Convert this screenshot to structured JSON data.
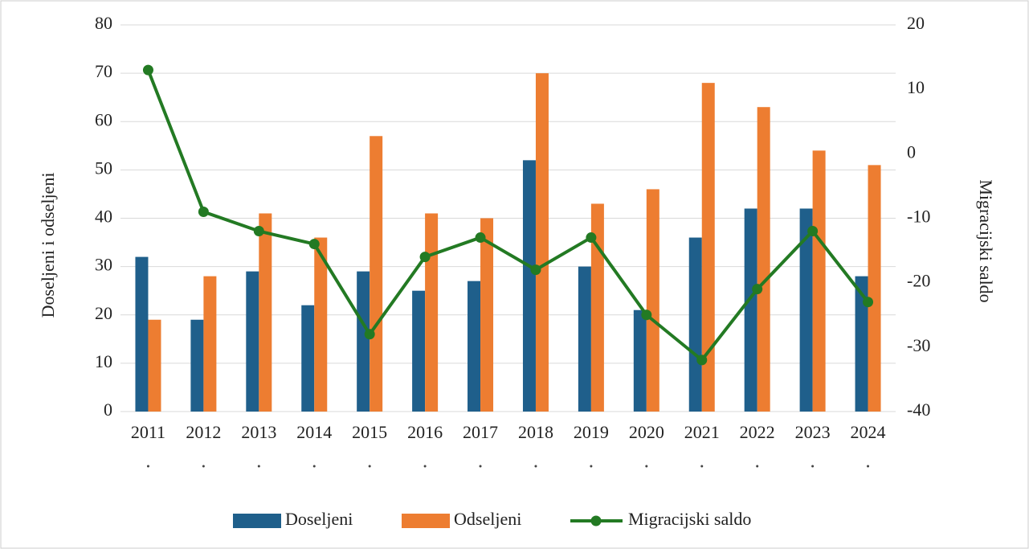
{
  "chart_data": {
    "type": "bar",
    "categories": [
      "2011",
      "2012",
      "2013",
      "2014",
      "2015",
      "2016",
      "2017",
      "2018",
      "2019",
      "2020",
      "2021",
      "2022",
      "2023",
      "2024"
    ],
    "y_label": "Doseljeni i odseljeni",
    "y2_label": "Migracijski saldo",
    "series": [
      {
        "name": "Doseljeni",
        "color": "#1f5f8b",
        "type": "bar",
        "values": [
          32,
          19,
          29,
          22,
          29,
          25,
          27,
          52,
          30,
          21,
          36,
          42,
          42,
          28
        ]
      },
      {
        "name": "Odseljeni",
        "color": "#ed7d31",
        "type": "bar",
        "values": [
          19,
          28,
          41,
          36,
          57,
          41,
          40,
          70,
          43,
          46,
          68,
          63,
          54,
          51
        ]
      },
      {
        "name": "Migracijski saldo",
        "color": "#237a23",
        "type": "line",
        "axis": "y2",
        "values": [
          13,
          -9,
          -12,
          -14,
          -28,
          -16,
          -13,
          -18,
          -13,
          -25,
          -32,
          -21,
          -12,
          -23
        ]
      }
    ],
    "ylim": [
      0,
      80
    ],
    "yticks": [
      0,
      10,
      20,
      30,
      40,
      50,
      60,
      70,
      80
    ],
    "y2lim": [
      -40,
      20
    ],
    "y2ticks": [
      -40,
      -30,
      -20,
      -10,
      0,
      10,
      20
    ],
    "grid": true,
    "legend": "bottom"
  }
}
